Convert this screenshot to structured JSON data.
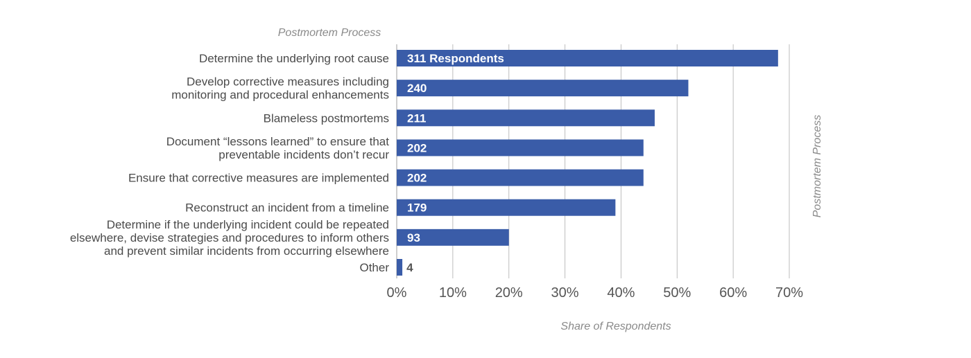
{
  "chart_data": {
    "type": "bar",
    "orientation": "horizontal",
    "title": "Postmortem Process",
    "ylabel_right": "Postmortem Process",
    "xlabel": "Share of Respondents",
    "categories": [
      [
        "Determine the underlying root cause"
      ],
      [
        "Develop corrective measures including",
        "monitoring and procedural enhancements"
      ],
      [
        "Blameless postmortems"
      ],
      [
        "Document “lessons learned” to ensure that",
        "preventable incidents don’t recur"
      ],
      [
        "Ensure that corrective measures are implemented"
      ],
      [
        "Reconstruct an incident from a timeline"
      ],
      [
        "Determine if the underlying incident could be repeated",
        "elsewhere, devise strategies and procedures to inform others",
        "and prevent similar incidents from occurring elsewhere"
      ],
      [
        "Other"
      ]
    ],
    "values": [
      68,
      52,
      46,
      44,
      44,
      39,
      20,
      1
    ],
    "value_labels": [
      "311 Respondents",
      "240",
      "211",
      "202",
      "202",
      "179",
      "93",
      "4"
    ],
    "xlim": [
      0,
      70
    ],
    "xticks": [
      0,
      10,
      20,
      30,
      40,
      50,
      60,
      70
    ],
    "xtick_labels": [
      "0%",
      "10%",
      "20%",
      "30%",
      "40%",
      "50%",
      "60%",
      "70%"
    ],
    "bar_color": "#3a5ca8",
    "grid": true,
    "legend": "none"
  }
}
